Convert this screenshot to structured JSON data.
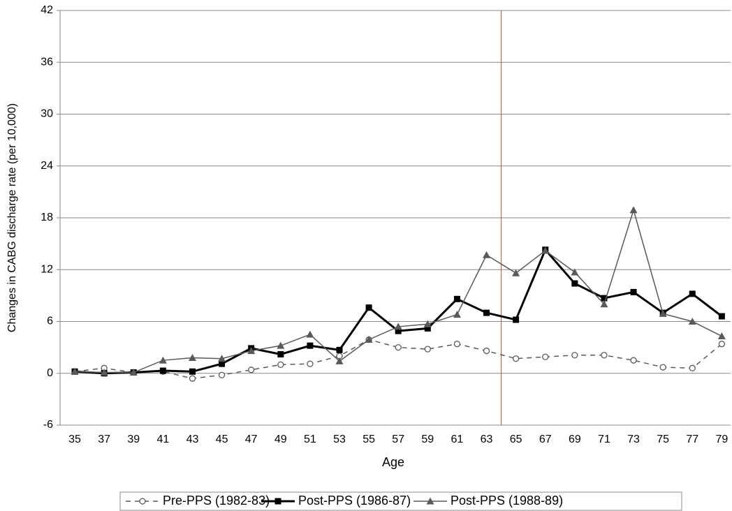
{
  "chart_data": {
    "type": "line",
    "y_label": "Changes in CABG discharge rate (per 10,000)",
    "x_label": "Age",
    "x": [
      35,
      37,
      39,
      41,
      43,
      45,
      47,
      49,
      51,
      53,
      55,
      57,
      59,
      61,
      63,
      65,
      67,
      69,
      71,
      73,
      75,
      77,
      79
    ],
    "xlim": [
      34,
      79.6
    ],
    "xticks": [
      35,
      37,
      39,
      41,
      43,
      45,
      47,
      49,
      51,
      53,
      55,
      57,
      59,
      61,
      63,
      65,
      67,
      69,
      71,
      73,
      75,
      77,
      79
    ],
    "ylim": [
      -6,
      42
    ],
    "yticks": [
      -6,
      0,
      6,
      12,
      18,
      24,
      30,
      36,
      42
    ],
    "grid": true,
    "legend": "bottom",
    "reference_lines": [
      {
        "x": 64,
        "color": "#c0504d"
      }
    ],
    "series": [
      {
        "name": "Pre-PPS (1982-83)",
        "color": "#595959",
        "dash": true,
        "marker": "circle",
        "width": 1.5,
        "values": [
          0.2,
          0.6,
          0.1,
          0.2,
          -0.6,
          -0.2,
          0.4,
          1.0,
          1.1,
          2.0,
          3.9,
          3.0,
          2.8,
          3.4,
          2.6,
          1.7,
          1.9,
          2.1,
          2.1,
          1.5,
          0.7,
          0.6,
          3.4
        ]
      },
      {
        "name": "Post-PPS (1986-87)",
        "color": "#000000",
        "dash": false,
        "marker": "square",
        "width": 3,
        "values": [
          0.2,
          0.0,
          0.1,
          0.3,
          0.2,
          1.1,
          2.9,
          2.2,
          3.2,
          2.7,
          7.6,
          4.9,
          5.2,
          8.6,
          7.0,
          6.2,
          14.3,
          10.4,
          8.7,
          9.4,
          7.0,
          9.2,
          6.6
        ]
      },
      {
        "name": "Post-PPS (1988-89)",
        "color": "#595959",
        "dash": false,
        "marker": "triangle",
        "width": 1.5,
        "values": [
          0.2,
          0.1,
          0.1,
          1.5,
          1.8,
          1.7,
          2.6,
          3.2,
          4.5,
          1.4,
          3.9,
          5.4,
          5.7,
          6.8,
          13.7,
          11.6,
          14.2,
          11.7,
          8.0,
          18.9,
          6.9,
          6.0,
          4.3
        ]
      }
    ]
  }
}
